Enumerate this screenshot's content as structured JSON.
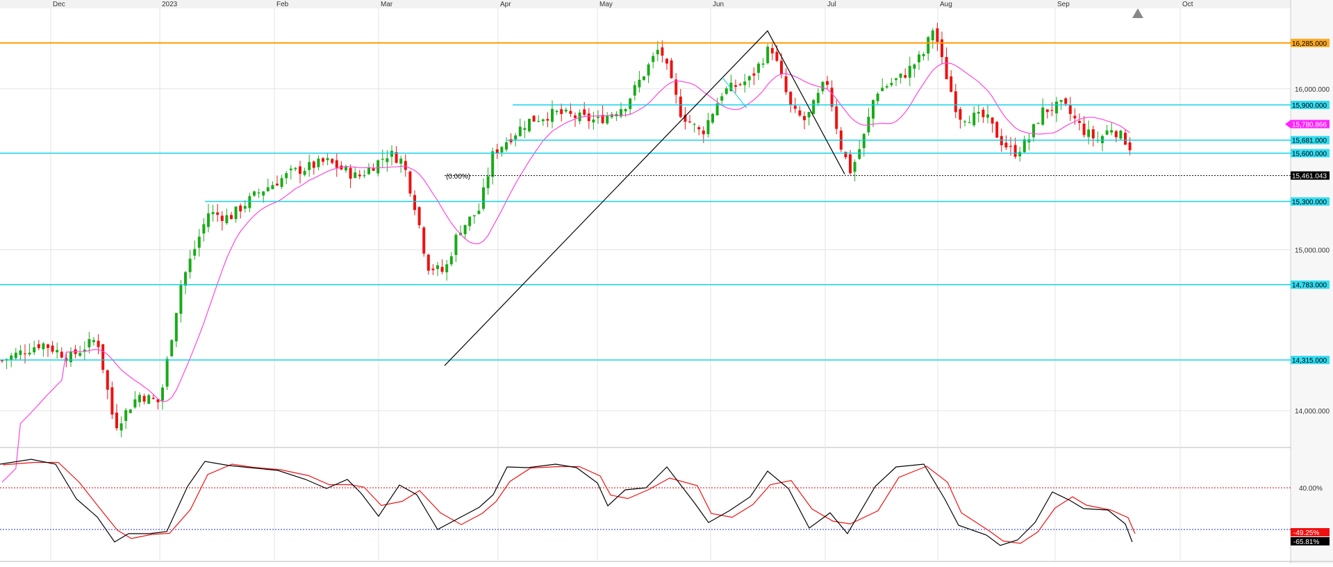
{
  "chart_data": [
    {
      "type": "candlestick",
      "title": "",
      "x_tick_labels": [
        "Dec",
        "2023",
        "Feb",
        "Mar",
        "Apr",
        "May",
        "Jun",
        "Jul",
        "Aug",
        "Sep",
        "Oct"
      ],
      "y_tick_labels": [
        "16,000.000",
        "15,000.000",
        "14,000.000"
      ],
      "ylim": [
        13780,
        16500
      ],
      "grid": true,
      "price_range": {
        "low": 13780,
        "high": 16440,
        "start": 14300,
        "end": 15461
      },
      "horizontal_levels": [
        {
          "value": 16285,
          "label": "16,285.000",
          "color": "#ff9900",
          "kind": "line"
        },
        {
          "value": 15900,
          "label": "15,900.000",
          "color": "#00cfe8",
          "kind": "line"
        },
        {
          "value": 15780.866,
          "label": "15,780.866",
          "color": "#ff00ff",
          "kind": "moving-average-value"
        },
        {
          "value": 15681,
          "label": "15,681.000",
          "color": "#00cfe8",
          "kind": "line"
        },
        {
          "value": 15600,
          "label": "15,600.000",
          "color": "#00cfe8",
          "kind": "line"
        },
        {
          "value": 15461.043,
          "label": "15,461.043",
          "color": "#000000",
          "kind": "last-price"
        },
        {
          "value": 15300,
          "label": "15,300.000",
          "color": "#00cfe8",
          "kind": "line"
        },
        {
          "value": 14783,
          "label": "14,783.000",
          "color": "#00cfe8",
          "kind": "line"
        },
        {
          "value": 14315,
          "label": "14,315.000",
          "color": "#00cfe8",
          "kind": "line"
        }
      ],
      "annotations": [
        "(0.00%)"
      ],
      "moving_average_color": "#ff44dd",
      "up_color": "#1aaa1a",
      "down_color": "#ee1111"
    },
    {
      "type": "line",
      "title": "",
      "ylim": [
        0,
        100
      ],
      "grid": true,
      "levels": [
        {
          "value": 40,
          "label": "40.00%",
          "color": "#dd0000"
        }
      ],
      "series": [
        {
          "color": "#ee1111",
          "end_label": "-49.25%"
        },
        {
          "color": "#000000",
          "end_label": "-65.81%"
        }
      ]
    }
  ]
}
